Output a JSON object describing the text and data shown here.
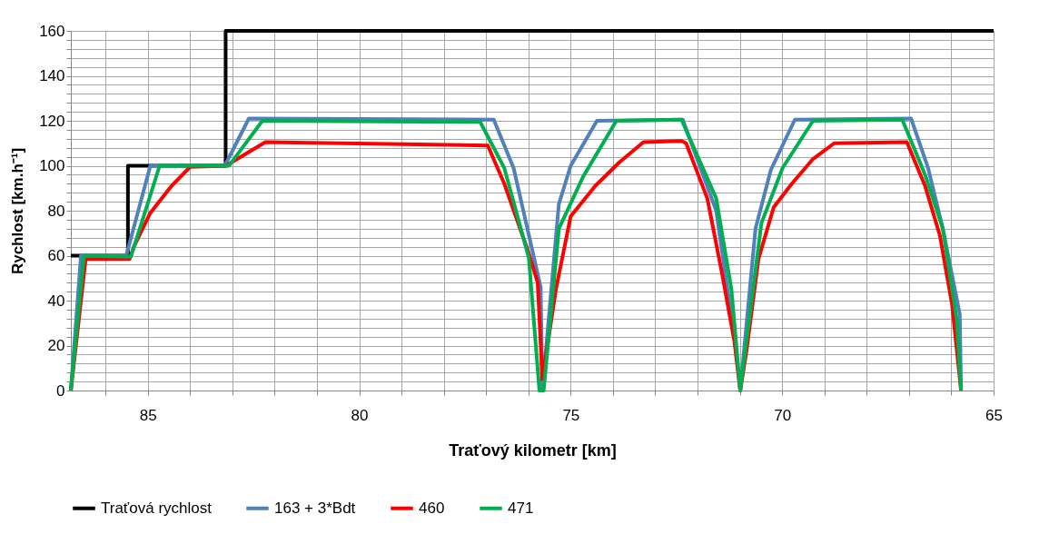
{
  "chart_data": {
    "type": "line",
    "xlabel": "Traťový kilometr [km]",
    "ylabel": "Rychlost [km.h⁻¹]",
    "xlim": [
      86.82,
      65
    ],
    "ylim": [
      0,
      160
    ],
    "xticks": [
      {
        "value": 86,
        "label": null
      },
      85,
      {
        "value": 84,
        "label": null
      },
      {
        "value": 83,
        "label": null
      },
      {
        "value": 82,
        "label": null
      },
      {
        "value": 81,
        "label": null
      },
      80,
      {
        "value": 79,
        "label": null
      },
      {
        "value": 78,
        "label": null
      },
      {
        "value": 77,
        "label": null
      },
      {
        "value": 76,
        "label": null
      },
      75,
      {
        "value": 74,
        "label": null
      },
      {
        "value": 73,
        "label": null
      },
      {
        "value": 72,
        "label": null
      },
      {
        "value": 71,
        "label": null
      },
      70,
      {
        "value": 69,
        "label": null
      },
      {
        "value": 68,
        "label": null
      },
      {
        "value": 67,
        "label": null
      },
      {
        "value": 66,
        "label": null
      },
      65
    ],
    "yticks": [
      0,
      {
        "value": 4,
        "label": null
      },
      {
        "value": 8,
        "label": null
      },
      {
        "value": 12,
        "label": null
      },
      {
        "value": 16,
        "label": null
      },
      20,
      {
        "value": 24,
        "label": null
      },
      {
        "value": 28,
        "label": null
      },
      {
        "value": 32,
        "label": null
      },
      {
        "value": 36,
        "label": null
      },
      40,
      {
        "value": 44,
        "label": null
      },
      {
        "value": 48,
        "label": null
      },
      {
        "value": 52,
        "label": null
      },
      {
        "value": 56,
        "label": null
      },
      60,
      {
        "value": 64,
        "label": null
      },
      {
        "value": 68,
        "label": null
      },
      {
        "value": 72,
        "label": null
      },
      {
        "value": 76,
        "label": null
      },
      80,
      {
        "value": 84,
        "label": null
      },
      {
        "value": 88,
        "label": null
      },
      {
        "value": 92,
        "label": null
      },
      {
        "value": 96,
        "label": null
      },
      100,
      {
        "value": 104,
        "label": null
      },
      {
        "value": 108,
        "label": null
      },
      {
        "value": 112,
        "label": null
      },
      {
        "value": 116,
        "label": null
      },
      120,
      {
        "value": 124,
        "label": null
      },
      {
        "value": 128,
        "label": null
      },
      {
        "value": 132,
        "label": null
      },
      {
        "value": 136,
        "label": null
      },
      140,
      {
        "value": 144,
        "label": null
      },
      {
        "value": 148,
        "label": null
      },
      {
        "value": 152,
        "label": null
      },
      {
        "value": 156,
        "label": null
      },
      160
    ],
    "grid": true,
    "legend": "bottom",
    "marker": "none",
    "line_style": "solid",
    "series": [
      {
        "name": "Traťová rychlost",
        "color": "#000000",
        "x": [
          86.82,
          85.47,
          85.47,
          83.16,
          83.16,
          65
        ],
        "values": [
          60,
          60,
          100,
          100,
          160,
          160
        ]
      },
      {
        "name": "163 + 3*Bdt",
        "color": "#4f81bd",
        "x": [
          86.82,
          86.58,
          85.51,
          84.94,
          83.18,
          82.61,
          76.82,
          76.35,
          75.71,
          75.67,
          75.28,
          75.0,
          74.38,
          72.35,
          71.56,
          71.13,
          70.99,
          70.63,
          70.27,
          69.7,
          66.95,
          66.55,
          66.2,
          65.8,
          65.77
        ],
        "values": [
          0,
          60,
          60,
          100,
          100,
          121,
          120.5,
          99,
          46,
          0,
          83,
          100,
          120,
          120.5,
          80,
          24,
          0,
          72,
          98,
          120.5,
          121,
          99,
          72,
          34,
          0
        ]
      },
      {
        "name": "460",
        "color": "#ff0000",
        "x": [
          86.82,
          86.47,
          85.43,
          85.33,
          84.94,
          84.44,
          84.0,
          83.15,
          82.22,
          76.96,
          76.57,
          75.99,
          75.78,
          75.67,
          75.35,
          75.0,
          74.42,
          73.85,
          73.28,
          72.38,
          72.27,
          71.77,
          71.42,
          71.13,
          70.99,
          70.84,
          70.56,
          70.2,
          69.77,
          69.27,
          68.77,
          67.05,
          66.62,
          66.27,
          65.98,
          65.77
        ],
        "values": [
          0,
          58.5,
          58.5,
          64,
          79,
          91,
          99.5,
          100,
          110.5,
          109,
          92,
          61,
          48,
          5,
          45,
          77.5,
          91,
          101.5,
          110.5,
          111,
          110,
          85.5,
          52,
          22,
          0,
          18,
          58.5,
          81.5,
          92,
          103,
          110,
          110.5,
          91,
          69,
          38,
          0
        ]
      },
      {
        "name": "471",
        "color": "#00b050",
        "x": [
          86.82,
          86.51,
          85.4,
          84.72,
          83.08,
          82.29,
          77.14,
          76.57,
          75.99,
          75.74,
          75.64,
          75.28,
          74.71,
          73.92,
          72.38,
          71.56,
          71.2,
          70.99,
          70.49,
          69.99,
          69.27,
          67.16,
          66.62,
          66.2,
          65.87,
          65.77
        ],
        "values": [
          0,
          60,
          59.5,
          100,
          100,
          120,
          119.5,
          99,
          59,
          0,
          0,
          72,
          95,
          120,
          120.5,
          85.5,
          45,
          0,
          74.5,
          99,
          120,
          120.5,
          96,
          72,
          31.5,
          0
        ]
      }
    ]
  }
}
